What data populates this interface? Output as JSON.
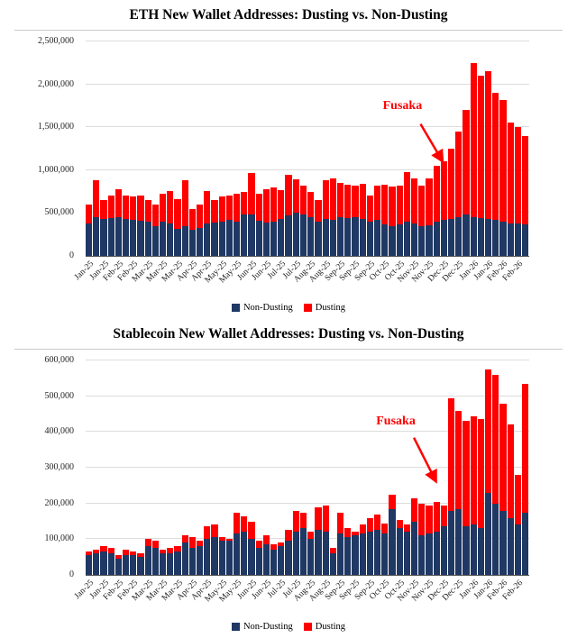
{
  "colors": {
    "non_dusting": "#1f3864",
    "dusting": "#ff0000",
    "annotation": "#ff0000",
    "gridline": "#dcdcdc",
    "axis": "#595959"
  },
  "chart_data": [
    {
      "type": "bar",
      "stacked": true,
      "title": "ETH New Wallet Addresses: Dusting vs. Non-Dusting",
      "xlabel": "",
      "ylabel": "",
      "ylim": [
        0,
        2500000
      ],
      "ytick_labels": [
        "0",
        "500,000",
        "1,000,000",
        "1,500,000",
        "2,000,000",
        "2,500,000"
      ],
      "grid": true,
      "legend_position": "bottom",
      "label_every": 2,
      "categories": [
        "Jan-25",
        "Jan-25",
        "Jan-25",
        "Jan-25",
        "Feb-25",
        "Feb-25",
        "Feb-25",
        "Feb-25",
        "Mar-25",
        "Mar-25",
        "Mar-25",
        "Mar-25",
        "Mar-25",
        "Apr-25",
        "Apr-25",
        "Apr-25",
        "Apr-25",
        "May-25",
        "May-25",
        "May-25",
        "May-25",
        "Jun-25",
        "Jun-25",
        "Jun-25",
        "Jun-25",
        "Jun-25",
        "Jul-25",
        "Jul-25",
        "Jul-25",
        "Jul-25",
        "Aug-25",
        "Aug-25",
        "Aug-25",
        "Aug-25",
        "Sep-25",
        "Sep-25",
        "Sep-25",
        "Sep-25",
        "Sep-25",
        "Oct-25",
        "Oct-25",
        "Oct-25",
        "Oct-25",
        "Nov-25",
        "Nov-25",
        "Nov-25",
        "Nov-25",
        "Dec-25",
        "Dec-25",
        "Dec-25",
        "Dec-25",
        "Dec-25",
        "Jan-26",
        "Jan-26",
        "Jan-26",
        "Jan-26",
        "Feb-26",
        "Feb-26",
        "Feb-26",
        "Feb-26"
      ],
      "series": [
        {
          "name": "Non-Dusting",
          "color": "#1f3864",
          "values": [
            380000,
            450000,
            430000,
            440000,
            450000,
            430000,
            420000,
            410000,
            400000,
            350000,
            400000,
            380000,
            320000,
            350000,
            300000,
            330000,
            380000,
            390000,
            400000,
            420000,
            400000,
            480000,
            480000,
            410000,
            390000,
            400000,
            430000,
            470000,
            500000,
            480000,
            450000,
            400000,
            430000,
            420000,
            450000,
            440000,
            450000,
            430000,
            400000,
            420000,
            370000,
            350000,
            370000,
            400000,
            380000,
            350000,
            360000,
            400000,
            420000,
            430000,
            450000,
            480000,
            450000,
            440000,
            430000,
            420000,
            400000,
            380000,
            380000,
            370000
          ]
        },
        {
          "name": "Dusting",
          "color": "#ff0000",
          "values": [
            220000,
            430000,
            220000,
            260000,
            330000,
            270000,
            270000,
            290000,
            250000,
            250000,
            320000,
            380000,
            340000,
            530000,
            250000,
            270000,
            380000,
            260000,
            290000,
            280000,
            320000,
            270000,
            490000,
            310000,
            390000,
            400000,
            340000,
            480000,
            390000,
            340000,
            300000,
            250000,
            450000,
            480000,
            400000,
            390000,
            370000,
            410000,
            300000,
            400000,
            460000,
            460000,
            450000,
            580000,
            520000,
            470000,
            540000,
            650000,
            680000,
            820000,
            1000000,
            1220000,
            1800000,
            1660000,
            1720000,
            1480000,
            1420000,
            1170000,
            1120000,
            1030000
          ]
        }
      ],
      "annotation": {
        "text": "Fusaka",
        "color": "#ff0000",
        "label_left": 0.67,
        "label_top": 0.27,
        "arrow_from": [
          0.755,
          0.385
        ],
        "arrow_to": [
          0.805,
          0.56
        ]
      }
    },
    {
      "type": "bar",
      "stacked": true,
      "title": "Stablecoin New Wallet Addresses: Dusting vs. Non-Dusting",
      "xlabel": "",
      "ylabel": "",
      "ylim": [
        0,
        600000
      ],
      "ytick_labels": [
        "0",
        "100,000",
        "200,000",
        "300,000",
        "400,000",
        "500,000",
        "600,000"
      ],
      "grid": true,
      "legend_position": "bottom",
      "label_every": 2,
      "categories": [
        "Jan-25",
        "Jan-25",
        "Jan-25",
        "Jan-25",
        "Feb-25",
        "Feb-25",
        "Feb-25",
        "Feb-25",
        "Mar-25",
        "Mar-25",
        "Mar-25",
        "Mar-25",
        "Mar-25",
        "Apr-25",
        "Apr-25",
        "Apr-25",
        "Apr-25",
        "May-25",
        "May-25",
        "May-25",
        "May-25",
        "Jun-25",
        "Jun-25",
        "Jun-25",
        "Jun-25",
        "Jun-25",
        "Jul-25",
        "Jul-25",
        "Jul-25",
        "Jul-25",
        "Aug-25",
        "Aug-25",
        "Aug-25",
        "Aug-25",
        "Sep-25",
        "Sep-25",
        "Sep-25",
        "Sep-25",
        "Sep-25",
        "Oct-25",
        "Oct-25",
        "Oct-25",
        "Oct-25",
        "Nov-25",
        "Nov-25",
        "Nov-25",
        "Nov-25",
        "Dec-25",
        "Dec-25",
        "Dec-25",
        "Dec-25",
        "Dec-25",
        "Jan-26",
        "Jan-26",
        "Jan-26",
        "Jan-26",
        "Feb-26",
        "Feb-26",
        "Feb-26",
        "Feb-26"
      ],
      "series": [
        {
          "name": "Non-Dusting",
          "color": "#1f3864",
          "values": [
            55000,
            60000,
            65000,
            60000,
            45000,
            55000,
            55000,
            50000,
            80000,
            75000,
            60000,
            60000,
            65000,
            90000,
            75000,
            80000,
            100000,
            105000,
            95000,
            95000,
            115000,
            120000,
            100000,
            75000,
            85000,
            70000,
            80000,
            95000,
            120000,
            130000,
            100000,
            125000,
            120000,
            60000,
            115000,
            105000,
            110000,
            115000,
            120000,
            125000,
            115000,
            185000,
            130000,
            120000,
            150000,
            110000,
            115000,
            120000,
            135000,
            180000,
            185000,
            135000,
            140000,
            130000,
            230000,
            200000,
            180000,
            160000,
            140000,
            175000
          ]
        },
        {
          "name": "Dusting",
          "color": "#ff0000",
          "values": [
            10000,
            10000,
            15000,
            15000,
            10000,
            15000,
            10000,
            10000,
            20000,
            20000,
            10000,
            15000,
            15000,
            20000,
            30000,
            15000,
            35000,
            35000,
            10000,
            5000,
            60000,
            45000,
            50000,
            20000,
            25000,
            15000,
            10000,
            30000,
            60000,
            45000,
            20000,
            65000,
            75000,
            15000,
            60000,
            25000,
            10000,
            25000,
            40000,
            45000,
            30000,
            40000,
            25000,
            20000,
            65000,
            90000,
            80000,
            85000,
            60000,
            315000,
            275000,
            295000,
            305000,
            305000,
            345000,
            360000,
            300000,
            260000,
            140000,
            360000
          ]
        }
      ],
      "annotation": {
        "text": "Fusaka",
        "color": "#ff0000",
        "label_left": 0.655,
        "label_top": 0.25,
        "arrow_from": [
          0.74,
          0.36
        ],
        "arrow_to": [
          0.79,
          0.565
        ]
      }
    }
  ]
}
